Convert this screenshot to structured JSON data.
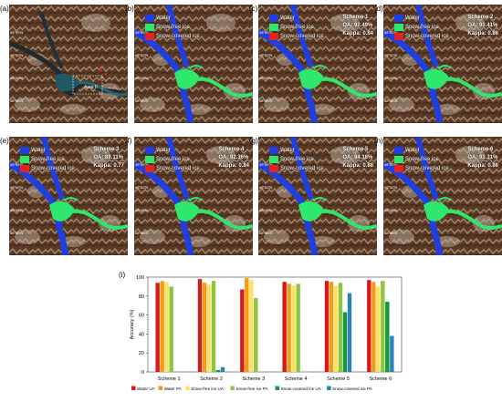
{
  "panels": [
    {
      "label": "(a)",
      "legend": false,
      "metrics": null,
      "annotation": "Area II"
    },
    {
      "label": "(b)",
      "legend": true,
      "metrics": null
    },
    {
      "label": "(c)",
      "legend": true,
      "metrics": {
        "scheme": "Scheme 1",
        "oa": "OA: 92.49%",
        "kappa": "Kappa: 0.84"
      }
    },
    {
      "label": "(d)",
      "legend": true,
      "metrics": {
        "scheme": "Scheme 2",
        "oa": "OA: 93.41%",
        "kappa": "Kappa: 0.86"
      }
    },
    {
      "label": "(e)",
      "legend": true,
      "metrics": {
        "scheme": "Scheme 3",
        "oa": "OA: 89.11%",
        "kappa": "Kappa: 0.77"
      }
    },
    {
      "label": "(f)",
      "legend": true,
      "metrics": {
        "scheme": "Scheme 4",
        "oa": "OA: 92.36%",
        "kappa": "Kappa: 0.84"
      }
    },
    {
      "label": "(g)",
      "legend": true,
      "metrics": {
        "scheme": "Scheme 5",
        "oa": "OA: 94.18%",
        "kappa": "Kappa: 0.88"
      }
    },
    {
      "label": "(h)",
      "legend": true,
      "metrics": {
        "scheme": "Scheme 6",
        "oa": "OA: 93.31%",
        "kappa": "Kappa: 0.86"
      }
    }
  ],
  "map_legend": [
    {
      "label": "Water",
      "color": "#1f3fe0"
    },
    {
      "label": "Snow-free ice",
      "color": "#2ee86e"
    },
    {
      "label": "Snow-covered ice",
      "color": "#e42222"
    }
  ],
  "lat_ticks": [
    "48°55'N",
    "48°52'N",
    "48°49'N",
    "48°46'N"
  ],
  "chart_label": "(i)",
  "chart_data": {
    "type": "bar",
    "categories": [
      "Scheme 1",
      "Scheme 2",
      "Scheme 3",
      "Scheme 4",
      "Scheme 5",
      "Scheme 6"
    ],
    "series": [
      {
        "name": "Water UA",
        "color": "#d7191c",
        "values": [
          94,
          98,
          87,
          95,
          96,
          97
        ]
      },
      {
        "name": "Water PA",
        "color": "#f39c12",
        "values": [
          96,
          94,
          99,
          93,
          95,
          95
        ]
      },
      {
        "name": "Snow-free ice UA",
        "color": "#ffe066",
        "values": [
          95,
          92,
          97,
          91,
          91,
          90
        ]
      },
      {
        "name": "Snow-free ice PA",
        "color": "#8cc63f",
        "values": [
          90,
          96,
          78,
          93,
          94,
          96
        ]
      },
      {
        "name": "Snow-covered ice UA",
        "color": "#1a9641",
        "values": [
          0,
          2,
          0,
          0,
          63,
          74
        ]
      },
      {
        "name": "Snow-covered ice PA",
        "color": "#2b83ba",
        "values": [
          0,
          5,
          0,
          0,
          83,
          38
        ]
      }
    ],
    "ylabel": "Accuracy (%)",
    "ylim": [
      0,
      100
    ],
    "yticks": [
      "0",
      "20",
      "40",
      "60",
      "80",
      "100"
    ],
    "legend_position": "bottom"
  }
}
